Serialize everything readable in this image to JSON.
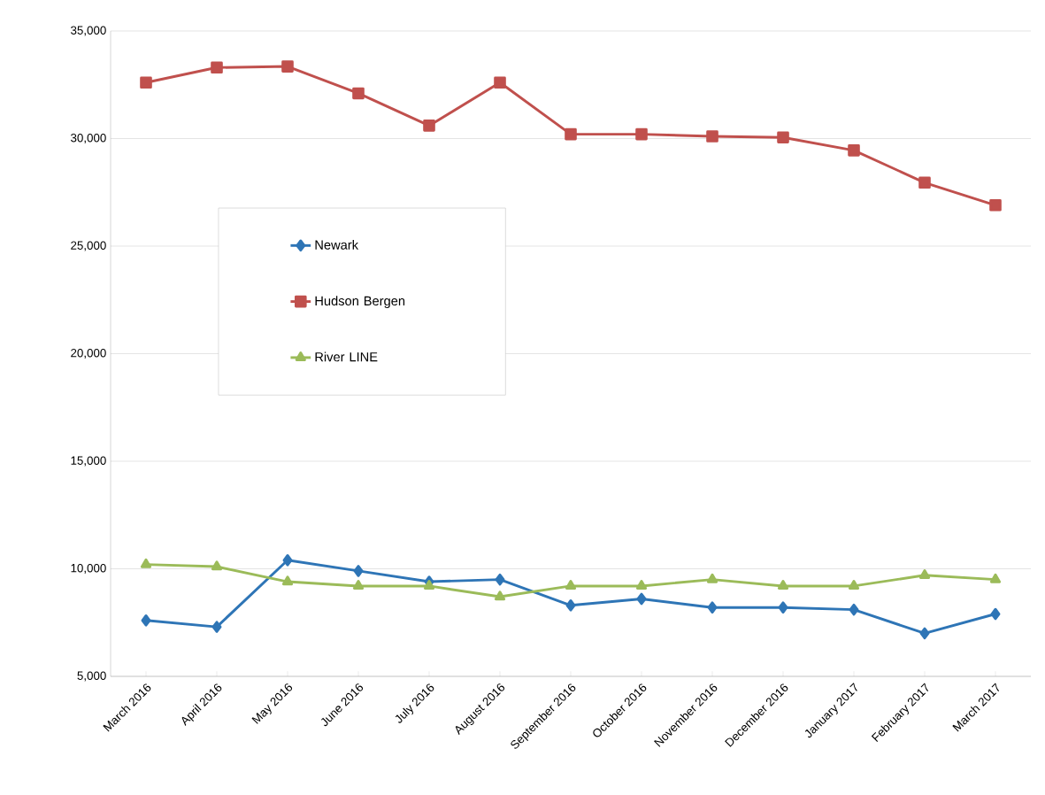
{
  "chart_data": {
    "type": "line",
    "categories": [
      "March 2016",
      "April 2016",
      "May 2016",
      "June 2016",
      "July 2016",
      "August 2016",
      "September 2016",
      "October 2016",
      "November 2016",
      "December 2016",
      "January 2017",
      "February 2017",
      "March 2017"
    ],
    "series": [
      {
        "name": "Newark",
        "color": "#2e75b6",
        "marker": "diamond",
        "values": [
          7600,
          7300,
          10400,
          9900,
          9400,
          9500,
          8300,
          8600,
          8200,
          8200,
          8100,
          7000,
          7900
        ]
      },
      {
        "name": "Hudson Bergen",
        "color": "#c0504d",
        "marker": "square",
        "values": [
          32600,
          33300,
          33350,
          32100,
          30600,
          32600,
          30200,
          30200,
          30100,
          30050,
          29450,
          27950,
          26900
        ]
      },
      {
        "name": "River LINE",
        "color": "#9bbb59",
        "marker": "triangle",
        "values": [
          10200,
          10100,
          9400,
          9200,
          9200,
          8700,
          9200,
          9200,
          9500,
          9200,
          9200,
          9700,
          9500
        ]
      }
    ],
    "ylim": [
      5000,
      35000
    ],
    "yticks": [
      {
        "value": 5000,
        "label": "5,000"
      },
      {
        "value": 10000,
        "label": "10,000"
      },
      {
        "value": 15000,
        "label": "15,000"
      },
      {
        "value": 20000,
        "label": "20,000"
      },
      {
        "value": 25000,
        "label": "25,000"
      },
      {
        "value": 30000,
        "label": "30,000"
      },
      {
        "value": 35000,
        "label": "35,000"
      }
    ],
    "grid": "y",
    "legend": "left",
    "line_style": "solid"
  }
}
